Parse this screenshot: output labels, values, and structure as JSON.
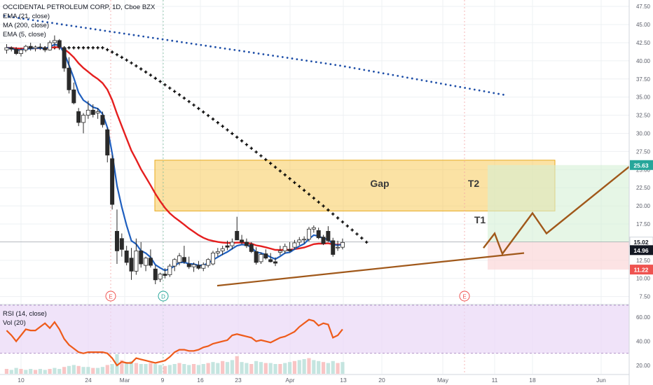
{
  "header": {
    "title": "OCCIDENTAL PETROLEUM CORP, 1D, Cboe BZX",
    "studies": [
      "EMA (21, close)",
      "MA (200, close)",
      "EMA (5, close)"
    ]
  },
  "lower_pane": {
    "studies": [
      "RSI (14, close)",
      "Vol (20)"
    ]
  },
  "price_labels": {
    "last": "14.96",
    "target": "25.63",
    "stop": "11.22",
    "ref": "15.02"
  },
  "colors": {
    "up": "#ffffff",
    "down": "#2a2a2a",
    "ema21": "#e51f1f",
    "ema5": "#1f5fbf",
    "ma200": "#1f4fa8",
    "trend": "#a0581a",
    "gap_zone": "#f7c64a",
    "target_zone": "#d6f0d6",
    "stop_zone": "#fbd7d9",
    "rsi": "#ee5b1a",
    "rsi_band": "#ead7f7"
  },
  "chart_data": [
    {
      "type": "candlestick",
      "title": "OCCIDENTAL PETROLEUM CORP, 1D, Cboe BZX",
      "x_ticks": [
        "10",
        "24",
        "Mar",
        "9",
        "16",
        "23",
        "Apr",
        "13",
        "20",
        "May",
        "11",
        "18",
        "Jun"
      ],
      "y_ticks": [
        "7.50",
        "10.00",
        "12.50",
        "15.00",
        "17.50",
        "20.00",
        "22.50",
        "25.00",
        "27.50",
        "30.00",
        "32.50",
        "35.00",
        "37.50",
        "40.00",
        "42.50",
        "45.00",
        "47.50"
      ],
      "ylim": [
        6.5,
        48.0
      ],
      "ohlc": [
        [
          41.5,
          42.3,
          41.0,
          41.8
        ],
        [
          41.8,
          42.0,
          41.3,
          41.6
        ],
        [
          41.6,
          41.9,
          40.8,
          41.0
        ],
        [
          41.0,
          41.8,
          40.6,
          41.5
        ],
        [
          41.5,
          42.2,
          41.2,
          42.0
        ],
        [
          42.0,
          42.5,
          41.4,
          41.7
        ],
        [
          41.7,
          42.1,
          41.3,
          41.9
        ],
        [
          41.9,
          42.4,
          41.5,
          41.8
        ],
        [
          41.8,
          42.0,
          41.2,
          41.5
        ],
        [
          41.5,
          42.8,
          41.4,
          42.5
        ],
        [
          42.5,
          43.5,
          42.0,
          42.8
        ],
        [
          42.8,
          43.0,
          41.5,
          41.9
        ],
        [
          41.8,
          42.0,
          38.5,
          39.0
        ],
        [
          39.0,
          40.5,
          35.5,
          36.0
        ],
        [
          36.0,
          37.0,
          34.0,
          34.2
        ],
        [
          33.0,
          33.5,
          31.0,
          31.5
        ],
        [
          31.5,
          32.8,
          30.0,
          32.5
        ],
        [
          32.5,
          34.5,
          32.0,
          33.2
        ],
        [
          33.2,
          34.0,
          32.2,
          32.6
        ],
        [
          32.8,
          33.5,
          32.0,
          33.0
        ],
        [
          32.5,
          33.0,
          30.8,
          31.2
        ],
        [
          30.5,
          30.8,
          26.0,
          27.0
        ],
        [
          26.5,
          27.0,
          19.5,
          20.2
        ],
        [
          16.5,
          19.5,
          12.0,
          13.8
        ],
        [
          15.5,
          16.2,
          13.0,
          14.0
        ],
        [
          13.8,
          14.5,
          11.8,
          12.2
        ],
        [
          12.8,
          14.2,
          9.8,
          11.0
        ],
        [
          11.0,
          15.5,
          10.5,
          13.8
        ],
        [
          13.8,
          15.0,
          11.5,
          12.0
        ],
        [
          11.8,
          13.0,
          11.0,
          12.8
        ],
        [
          12.8,
          14.0,
          11.5,
          11.8
        ],
        [
          11.3,
          11.8,
          9.2,
          9.8
        ],
        [
          9.9,
          10.8,
          9.5,
          10.6
        ],
        [
          10.6,
          11.4,
          10.0,
          10.4
        ],
        [
          10.5,
          12.0,
          10.2,
          11.7
        ],
        [
          11.7,
          12.8,
          11.0,
          12.6
        ],
        [
          12.2,
          13.5,
          11.8,
          13.1
        ],
        [
          12.9,
          14.5,
          12.0,
          12.3
        ],
        [
          12.0,
          13.0,
          11.3,
          11.6
        ],
        [
          11.6,
          12.2,
          10.9,
          11.9
        ],
        [
          11.8,
          12.4,
          11.2,
          11.4
        ],
        [
          11.4,
          12.2,
          11.0,
          11.9
        ],
        [
          11.8,
          12.8,
          11.5,
          12.6
        ],
        [
          12.0,
          13.8,
          11.8,
          13.5
        ],
        [
          13.5,
          14.2,
          13.0,
          13.7
        ],
        [
          13.8,
          14.5,
          13.2,
          14.1
        ],
        [
          14.5,
          15.2,
          13.9,
          14.3
        ],
        [
          14.5,
          15.5,
          14.0,
          15.0
        ],
        [
          16.5,
          18.5,
          15.5,
          15.3
        ],
        [
          15.3,
          16.0,
          14.7,
          15.0
        ],
        [
          15.0,
          15.5,
          14.2,
          14.5
        ],
        [
          14.7,
          15.0,
          13.5,
          13.7
        ],
        [
          13.7,
          14.3,
          11.9,
          12.2
        ],
        [
          12.3,
          13.6,
          12.0,
          13.3
        ],
        [
          13.4,
          14.0,
          12.6,
          12.8
        ],
        [
          12.6,
          13.5,
          12.2,
          12.3
        ],
        [
          12.3,
          12.9,
          11.7,
          12.1
        ],
        [
          13.6,
          14.5,
          13.2,
          13.8
        ],
        [
          13.8,
          14.8,
          13.4,
          14.4
        ],
        [
          14.0,
          15.0,
          13.6,
          13.8
        ],
        [
          14.3,
          15.3,
          14.0,
          14.9
        ],
        [
          15.0,
          15.7,
          14.6,
          15.3
        ],
        [
          15.3,
          15.8,
          14.8,
          15.4
        ],
        [
          15.4,
          17.1,
          15.1,
          16.8
        ],
        [
          16.8,
          17.3,
          16.3,
          17.0
        ],
        [
          16.6,
          17.0,
          15.4,
          15.6
        ],
        [
          15.7,
          16.0,
          14.6,
          14.8
        ],
        [
          16.5,
          17.2,
          15.0,
          15.2
        ],
        [
          15.2,
          15.6,
          13.0,
          13.3
        ],
        [
          14.2,
          15.2,
          13.8,
          14.3
        ],
        [
          14.3,
          15.5,
          14.0,
          14.96
        ]
      ],
      "rsi_values": [
        49,
        45,
        40,
        45,
        50,
        49,
        49,
        52,
        55,
        51,
        56,
        50,
        42,
        37,
        34,
        31,
        30,
        31,
        31,
        31,
        31,
        30,
        26,
        20,
        23,
        22,
        22,
        26,
        25,
        24,
        23,
        22,
        23,
        24,
        27,
        31,
        33,
        33,
        32,
        32,
        33,
        35,
        36,
        38,
        39,
        40,
        41,
        45,
        46,
        45,
        44,
        43,
        40,
        41,
        40,
        39,
        41,
        43,
        44,
        46,
        48,
        52,
        55,
        58,
        57,
        53,
        55,
        54,
        43,
        45,
        50
      ],
      "volume_values": [
        5,
        4,
        6,
        5,
        4,
        5,
        4,
        5,
        4,
        5,
        6,
        5,
        7,
        8,
        9,
        8,
        7,
        7,
        6,
        6,
        7,
        9,
        10,
        20,
        14,
        12,
        13,
        11,
        10,
        10,
        11,
        10,
        9,
        8,
        9,
        10,
        11,
        10,
        9,
        10,
        9,
        10,
        11,
        12,
        11,
        13,
        12,
        14,
        18,
        12,
        11,
        10,
        13,
        12,
        11,
        11,
        10,
        10,
        11,
        12,
        13,
        14,
        15,
        16,
        14,
        13,
        12,
        11,
        13,
        11,
        12
      ],
      "annotations": [
        "Gap",
        "T2",
        "T1"
      ],
      "event_markers": [
        "E",
        "D",
        "E"
      ]
    },
    {
      "type": "line",
      "title": "RSI (14, close)",
      "y_ticks": [
        "20.00",
        "40.00",
        "60.00"
      ],
      "ylim": [
        13,
        70
      ],
      "band": [
        30,
        70
      ]
    }
  ]
}
